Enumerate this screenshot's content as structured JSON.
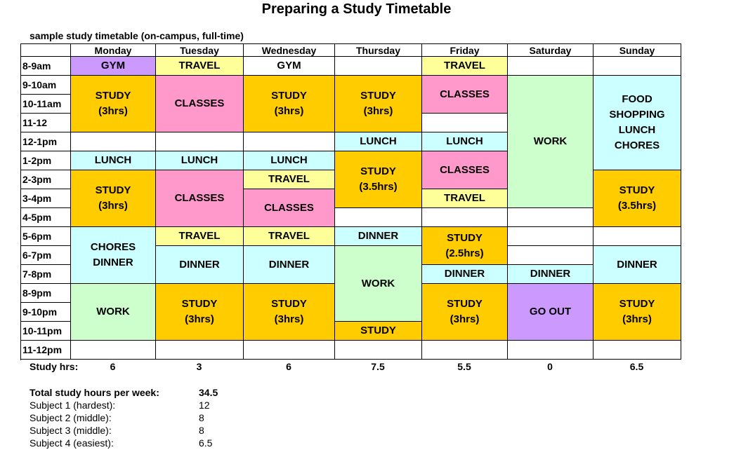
{
  "title": "Preparing a Study Timetable",
  "subtitle": "sample study timetable (on-campus, full-time)",
  "days": [
    "Monday",
    "Tuesday",
    "Wednesday",
    "Thursday",
    "Friday",
    "Saturday",
    "Sunday"
  ],
  "times": [
    "8-9am",
    "9-10am",
    "10-11am",
    "11-12",
    "12-1pm",
    "1-2pm",
    "2-3pm",
    "3-4pm",
    "4-5pm",
    "5-6pm",
    "6-7pm",
    "7-8pm",
    "8-9pm",
    "9-10pm",
    "10-11pm",
    "11-12pm"
  ],
  "colors": {
    "gym": "#cc99ff",
    "travel": "#ffff99",
    "study": "#ffcc00",
    "classes": "#ff99cc",
    "food": "#ccffff",
    "work": "#ccffcc",
    "goout": "#cc99ff",
    "empty": "#ffffff"
  },
  "blocks": [
    {
      "day": 0,
      "start": 0,
      "span": 1,
      "type": "gym",
      "lines": [
        "GYM"
      ]
    },
    {
      "day": 0,
      "start": 1,
      "span": 3,
      "type": "study",
      "lines": [
        "STUDY",
        "(3hrs)"
      ]
    },
    {
      "day": 0,
      "start": 4,
      "span": 1,
      "type": "empty",
      "lines": []
    },
    {
      "day": 0,
      "start": 5,
      "span": 1,
      "type": "food",
      "lines": [
        "LUNCH"
      ]
    },
    {
      "day": 0,
      "start": 6,
      "span": 3,
      "type": "study",
      "lines": [
        "STUDY",
        "(3hrs)"
      ]
    },
    {
      "day": 0,
      "start": 9,
      "span": 3,
      "type": "food",
      "lines": [
        "CHORES",
        "DINNER"
      ]
    },
    {
      "day": 0,
      "start": 12,
      "span": 3,
      "type": "work",
      "lines": [
        "WORK"
      ]
    },
    {
      "day": 0,
      "start": 15,
      "span": 1,
      "type": "empty",
      "lines": []
    },
    {
      "day": 1,
      "start": 0,
      "span": 1,
      "type": "travel",
      "lines": [
        "TRAVEL"
      ]
    },
    {
      "day": 1,
      "start": 1,
      "span": 3,
      "type": "classes",
      "lines": [
        "CLASSES"
      ]
    },
    {
      "day": 1,
      "start": 4,
      "span": 1,
      "type": "empty",
      "lines": []
    },
    {
      "day": 1,
      "start": 5,
      "span": 1,
      "type": "food",
      "lines": [
        "LUNCH"
      ]
    },
    {
      "day": 1,
      "start": 6,
      "span": 3,
      "type": "classes",
      "lines": [
        "CLASSES"
      ]
    },
    {
      "day": 1,
      "start": 9,
      "span": 1,
      "type": "travel",
      "lines": [
        "TRAVEL"
      ]
    },
    {
      "day": 1,
      "start": 10,
      "span": 2,
      "type": "food",
      "lines": [
        "DINNER"
      ]
    },
    {
      "day": 1,
      "start": 12,
      "span": 3,
      "type": "study",
      "lines": [
        "STUDY",
        "(3hrs)"
      ]
    },
    {
      "day": 1,
      "start": 15,
      "span": 1,
      "type": "empty",
      "lines": []
    },
    {
      "day": 2,
      "start": 0,
      "span": 1,
      "type": "empty",
      "lines": [
        "GYM"
      ]
    },
    {
      "day": 2,
      "start": 1,
      "span": 3,
      "type": "study",
      "lines": [
        "STUDY",
        "(3hrs)"
      ]
    },
    {
      "day": 2,
      "start": 4,
      "span": 1,
      "type": "empty",
      "lines": []
    },
    {
      "day": 2,
      "start": 5,
      "span": 1,
      "type": "food",
      "lines": [
        "LUNCH"
      ]
    },
    {
      "day": 2,
      "start": 6,
      "span": 1,
      "type": "travel",
      "lines": [
        "TRAVEL"
      ]
    },
    {
      "day": 2,
      "start": 7,
      "span": 2,
      "type": "classes",
      "lines": [
        "CLASSES"
      ]
    },
    {
      "day": 2,
      "start": 9,
      "span": 1,
      "type": "travel",
      "lines": [
        "TRAVEL"
      ]
    },
    {
      "day": 2,
      "start": 10,
      "span": 2,
      "type": "food",
      "lines": [
        "DINNER"
      ]
    },
    {
      "day": 2,
      "start": 12,
      "span": 3,
      "type": "study",
      "lines": [
        "STUDY",
        "(3hrs)"
      ]
    },
    {
      "day": 2,
      "start": 15,
      "span": 1,
      "type": "empty",
      "lines": []
    },
    {
      "day": 3,
      "start": 0,
      "span": 1,
      "type": "empty",
      "lines": []
    },
    {
      "day": 3,
      "start": 1,
      "span": 3,
      "type": "study",
      "lines": [
        "STUDY",
        "(3hrs)"
      ]
    },
    {
      "day": 3,
      "start": 4,
      "span": 1,
      "type": "food",
      "lines": [
        "LUNCH"
      ]
    },
    {
      "day": 3,
      "start": 5,
      "span": 3,
      "type": "study",
      "lines": [
        "STUDY",
        "(3.5hrs)"
      ]
    },
    {
      "day": 3,
      "start": 8,
      "span": 1,
      "type": "empty",
      "lines": []
    },
    {
      "day": 3,
      "start": 9,
      "span": 1,
      "type": "food",
      "lines": [
        "DINNER"
      ]
    },
    {
      "day": 3,
      "start": 10,
      "span": 4,
      "type": "work",
      "lines": [
        "WORK"
      ]
    },
    {
      "day": 3,
      "start": 14,
      "span": 1,
      "type": "study",
      "lines": [
        "STUDY"
      ]
    },
    {
      "day": 3,
      "start": 15,
      "span": 1,
      "type": "empty",
      "lines": []
    },
    {
      "day": 4,
      "start": 0,
      "span": 1,
      "type": "travel",
      "lines": [
        "TRAVEL"
      ]
    },
    {
      "day": 4,
      "start": 1,
      "span": 2,
      "type": "classes",
      "lines": [
        "CLASSES"
      ]
    },
    {
      "day": 4,
      "start": 3,
      "span": 1,
      "type": "empty",
      "lines": []
    },
    {
      "day": 4,
      "start": 4,
      "span": 1,
      "type": "food",
      "lines": [
        "LUNCH"
      ]
    },
    {
      "day": 4,
      "start": 5,
      "span": 2,
      "type": "classes",
      "lines": [
        "CLASSES"
      ]
    },
    {
      "day": 4,
      "start": 7,
      "span": 1,
      "type": "travel",
      "lines": [
        "TRAVEL"
      ]
    },
    {
      "day": 4,
      "start": 8,
      "span": 1,
      "type": "empty",
      "lines": []
    },
    {
      "day": 4,
      "start": 9,
      "span": 2,
      "type": "study",
      "lines": [
        "STUDY",
        "(2.5hrs)"
      ]
    },
    {
      "day": 4,
      "start": 11,
      "span": 1,
      "type": "food",
      "lines": [
        "DINNER"
      ]
    },
    {
      "day": 4,
      "start": 12,
      "span": 3,
      "type": "study",
      "lines": [
        "STUDY",
        "(3hrs)"
      ]
    },
    {
      "day": 4,
      "start": 15,
      "span": 1,
      "type": "empty",
      "lines": []
    },
    {
      "day": 5,
      "start": 0,
      "span": 1,
      "type": "empty",
      "lines": []
    },
    {
      "day": 5,
      "start": 1,
      "span": 7,
      "type": "work",
      "lines": [
        "WORK"
      ]
    },
    {
      "day": 5,
      "start": 8,
      "span": 1,
      "type": "empty",
      "lines": []
    },
    {
      "day": 5,
      "start": 9,
      "span": 1,
      "type": "empty",
      "lines": []
    },
    {
      "day": 5,
      "start": 10,
      "span": 1,
      "type": "empty",
      "lines": []
    },
    {
      "day": 5,
      "start": 11,
      "span": 1,
      "type": "food",
      "lines": [
        "DINNER"
      ]
    },
    {
      "day": 5,
      "start": 12,
      "span": 3,
      "type": "goout",
      "lines": [
        "GO OUT"
      ]
    },
    {
      "day": 5,
      "start": 15,
      "span": 1,
      "type": "empty",
      "lines": []
    },
    {
      "day": 6,
      "start": 0,
      "span": 1,
      "type": "empty",
      "lines": []
    },
    {
      "day": 6,
      "start": 1,
      "span": 5,
      "type": "food",
      "lines": [
        "FOOD",
        "SHOPPING",
        "LUNCH",
        "CHORES"
      ]
    },
    {
      "day": 6,
      "start": 6,
      "span": 3,
      "type": "study",
      "lines": [
        "STUDY",
        "(3.5hrs)"
      ]
    },
    {
      "day": 6,
      "start": 9,
      "span": 1,
      "type": "empty",
      "lines": []
    },
    {
      "day": 6,
      "start": 10,
      "span": 2,
      "type": "food",
      "lines": [
        "DINNER"
      ]
    },
    {
      "day": 6,
      "start": 12,
      "span": 3,
      "type": "study",
      "lines": [
        "STUDY",
        "(3hrs)"
      ]
    },
    {
      "day": 6,
      "start": 15,
      "span": 1,
      "type": "empty",
      "lines": []
    }
  ],
  "study_hours_label": "Study hrs:",
  "study_hours": [
    "6",
    "3",
    "6",
    "7.5",
    "5.5",
    "0",
    "6.5"
  ],
  "summary": {
    "total_label": "Total study hours per week:",
    "total_value": "34.5",
    "subjects": [
      {
        "label": "Subject 1 (hardest):",
        "value": "12"
      },
      {
        "label": "Subject 2 (middle):",
        "value": "8"
      },
      {
        "label": "Subject 3 (middle):",
        "value": "8"
      },
      {
        "label": "Subject 4 (easiest):",
        "value": "6.5"
      }
    ]
  }
}
